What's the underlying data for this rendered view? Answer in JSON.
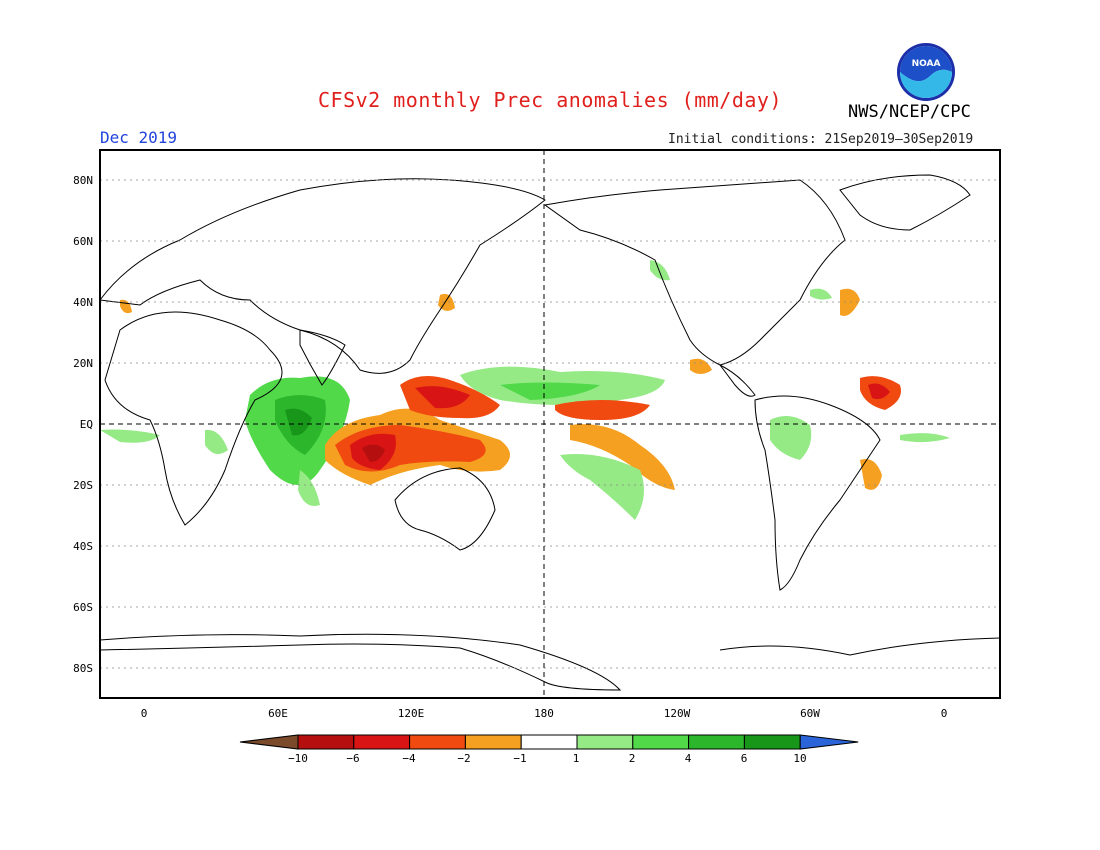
{
  "header": {
    "title": "CFSv2 monthly Prec anomalies (mm/day)",
    "agency": "NWS/NCEP/CPC",
    "month": "Dec 2019",
    "initial_conditions": "Initial conditions: 21Sep2019–30Sep2019",
    "logo_text": "NOAA"
  },
  "map": {
    "lat_labels": [
      "80N",
      "60N",
      "40N",
      "20N",
      "EQ",
      "20S",
      "40S",
      "60S",
      "80S"
    ],
    "lon_labels": [
      "0",
      "60E",
      "120E",
      "180",
      "120W",
      "60W",
      "0"
    ]
  },
  "colorbar": {
    "tick_labels": [
      "−10",
      "−6",
      "−4",
      "−2",
      "−1",
      "1",
      "2",
      "4",
      "6",
      "10"
    ],
    "colors": [
      "#7a4a2a",
      "#b50f0f",
      "#d91414",
      "#f04a10",
      "#f5a020",
      "#ffffff",
      "#95ea86",
      "#52d94a",
      "#2cb62c",
      "#17961a",
      "#2a64d8"
    ]
  }
}
